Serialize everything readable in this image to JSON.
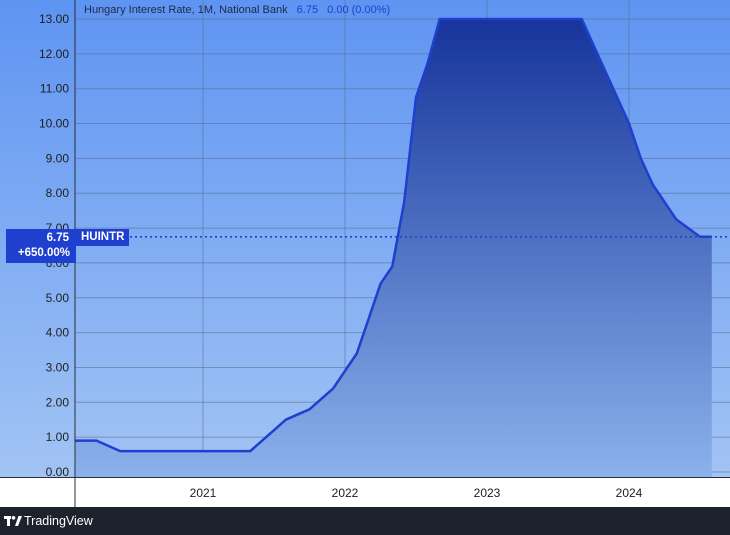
{
  "legend": {
    "title": "Hungary Interest Rate, 1M, National Bank",
    "last": "6.75",
    "change": "0.00 (0.00%)"
  },
  "price_tag": {
    "price": "6.75",
    "change_pct": "+650.00%",
    "symbol": "HUINTR"
  },
  "footer": {
    "brand": "TradingView"
  },
  "colors": {
    "background_top": "#5e94f2",
    "background_bottom": "#a2c4f4",
    "line": "#1f3fcf",
    "area_top": "#16349b",
    "area_bottom": "#8bb2ec"
  },
  "chart_data": {
    "type": "area",
    "title": "",
    "xlabel": "",
    "ylabel": "",
    "grid": true,
    "ylim": [
      0,
      13
    ],
    "y_ticks": [
      "0.00",
      "1.00",
      "2.00",
      "3.00",
      "4.00",
      "5.00",
      "6.00",
      "7.00",
      "8.00",
      "9.00",
      "10.00",
      "11.00",
      "12.00",
      "13.00"
    ],
    "xlim": [
      "2020-02",
      "2024-10"
    ],
    "x_ticks": [
      {
        "label": "2021",
        "date": "2021-01"
      },
      {
        "label": "2022",
        "date": "2022-01"
      },
      {
        "label": "2023",
        "date": "2023-01"
      },
      {
        "label": "2024",
        "date": "2024-01"
      }
    ],
    "series": [
      {
        "name": "HUINTR",
        "points": [
          [
            "2020-02",
            0.9
          ],
          [
            "2020-04",
            0.9
          ],
          [
            "2020-06",
            0.6
          ],
          [
            "2020-08",
            0.6
          ],
          [
            "2020-10",
            0.6
          ],
          [
            "2021-01",
            0.6
          ],
          [
            "2021-03",
            0.6
          ],
          [
            "2021-05",
            0.6
          ],
          [
            "2021-06",
            0.9
          ],
          [
            "2021-07",
            1.2
          ],
          [
            "2021-08",
            1.5
          ],
          [
            "2021-10",
            1.8
          ],
          [
            "2021-12",
            2.4
          ],
          [
            "2022-01",
            2.9
          ],
          [
            "2022-02",
            3.4
          ],
          [
            "2022-03",
            4.4
          ],
          [
            "2022-04",
            5.4
          ],
          [
            "2022-05",
            5.9
          ],
          [
            "2022-06",
            7.75
          ],
          [
            "2022-07",
            10.75
          ],
          [
            "2022-08",
            11.75
          ],
          [
            "2022-09",
            13.0
          ],
          [
            "2023-09",
            13.0
          ],
          [
            "2023-10",
            12.25
          ],
          [
            "2023-11",
            11.5
          ],
          [
            "2023-12",
            10.75
          ],
          [
            "2024-01",
            10.0
          ],
          [
            "2024-02",
            9.0
          ],
          [
            "2024-03",
            8.25
          ],
          [
            "2024-04",
            7.75
          ],
          [
            "2024-05",
            7.25
          ],
          [
            "2024-06",
            7.0
          ],
          [
            "2024-07",
            6.75
          ],
          [
            "2024-08",
            6.75
          ]
        ]
      }
    ],
    "last_value": 6.75
  }
}
